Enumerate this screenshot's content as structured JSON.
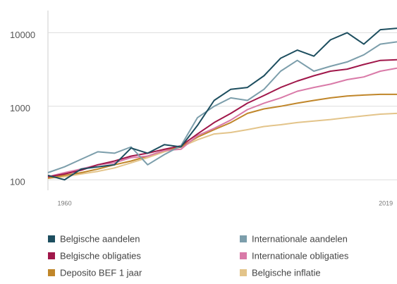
{
  "chart_data": {
    "type": "line",
    "log_y": true,
    "grid": true,
    "x": [
      1957,
      1960,
      1963,
      1966,
      1969,
      1972,
      1975,
      1978,
      1981,
      1984,
      1987,
      1990,
      1993,
      1996,
      1999,
      2002,
      2005,
      2008,
      2011,
      2014,
      2017,
      2020
    ],
    "xlim": [
      1957,
      2020
    ],
    "xticks": [
      1960,
      2019
    ],
    "ylim": [
      72,
      20000
    ],
    "yticks": [
      100,
      1000,
      10000
    ],
    "series": [
      {
        "name": "Belgische aandelen",
        "color": "#1d4e5f",
        "values": [
          115,
          100,
          140,
          150,
          160,
          270,
          230,
          300,
          280,
          550,
          1200,
          1700,
          1800,
          2600,
          4500,
          5800,
          4800,
          8000,
          10000,
          7000,
          11000,
          11500
        ]
      },
      {
        "name": "Internationale aandelen",
        "color": "#7c9eab",
        "values": [
          125,
          150,
          190,
          240,
          230,
          280,
          160,
          220,
          290,
          700,
          1000,
          1300,
          1200,
          1700,
          3000,
          4200,
          3000,
          3500,
          4000,
          5000,
          7000,
          7500
        ]
      },
      {
        "name": "Belgische obligaties",
        "color": "#a0174a",
        "values": [
          110,
          120,
          135,
          160,
          180,
          210,
          230,
          260,
          290,
          420,
          600,
          800,
          1100,
          1400,
          1800,
          2200,
          2600,
          3000,
          3200,
          3700,
          4200,
          4300
        ]
      },
      {
        "name": "Internationale obligaties",
        "color": "#d97aa8",
        "values": [
          110,
          125,
          140,
          160,
          170,
          200,
          210,
          250,
          260,
          400,
          500,
          650,
          900,
          1100,
          1300,
          1600,
          1800,
          2000,
          2300,
          2500,
          3000,
          3300
        ]
      },
      {
        "name": "Deposito BEF 1 jaar",
        "color": "#c0862a",
        "values": [
          105,
          115,
          125,
          140,
          160,
          180,
          210,
          250,
          280,
          380,
          480,
          600,
          800,
          920,
          1000,
          1100,
          1200,
          1300,
          1380,
          1420,
          1450,
          1450
        ]
      },
      {
        "name": "Belgische inflatie",
        "color": "#e3c48a",
        "values": [
          105,
          110,
          120,
          130,
          145,
          170,
          200,
          240,
          280,
          350,
          420,
          440,
          480,
          530,
          560,
          600,
          630,
          660,
          700,
          740,
          780,
          800
        ]
      }
    ]
  }
}
